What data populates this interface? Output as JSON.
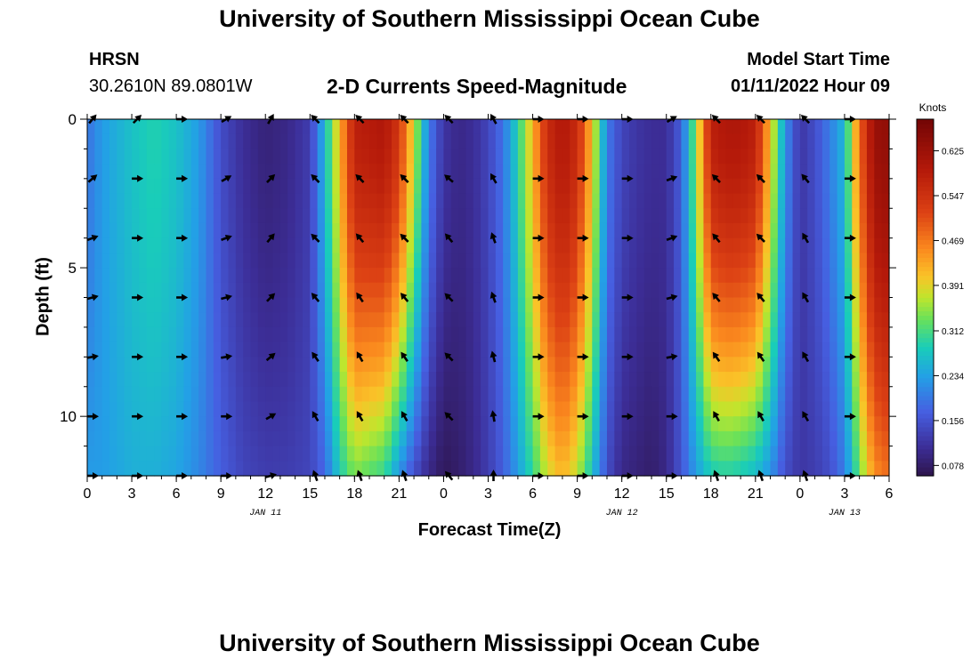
{
  "header": {
    "title": "University of Southern Mississippi Ocean Cube",
    "station": "HRSN",
    "coordinates": "30.2610N  89.0801W",
    "plot_title": "2-D Currents Speed-Magnitude",
    "model_start_label": "Model Start Time",
    "model_start_value": "01/11/2022 Hour 09"
  },
  "footer": {
    "title": "University of Southern Mississippi Ocean Cube"
  },
  "chart_data": {
    "type": "heatmap",
    "title": "2-D Currents Speed-Magnitude",
    "xlabel": "Forecast Time(Z)",
    "ylabel": "Depth (ft)",
    "colorbar_label": "Knots",
    "x_range_hours": [
      0,
      54
    ],
    "y_range_ft": [
      0,
      12
    ],
    "x_tick_labels": [
      "0",
      "3",
      "6",
      "9",
      "12",
      "15",
      "18",
      "21",
      "0",
      "3",
      "6",
      "9",
      "12",
      "15",
      "18",
      "21",
      "0",
      "3",
      "6"
    ],
    "y_tick_values": [
      0,
      5,
      10
    ],
    "date_labels": [
      {
        "label": "JAN 11",
        "hour": 12
      },
      {
        "label": "JAN 12",
        "hour": 36
      },
      {
        "label": "JAN 13",
        "hour": 51
      }
    ],
    "colorbar_ticks": [
      "0.078",
      "0.156",
      "0.234",
      "0.312",
      "0.391",
      "0.469",
      "0.547",
      "0.625"
    ],
    "colorbar_range": [
      0.06,
      0.68
    ],
    "speed_profile": {
      "hours": [
        0,
        1,
        3,
        4.5,
        6,
        7.5,
        9,
        10.5,
        12,
        13.5,
        15,
        16,
        17,
        18,
        20,
        21,
        22,
        23,
        24,
        25,
        26,
        27,
        28,
        29,
        30,
        31,
        32,
        33,
        34,
        35,
        36,
        37,
        38,
        39,
        40,
        41,
        42,
        43,
        44,
        45,
        46,
        47,
        48,
        49,
        50,
        51,
        52,
        53,
        54
      ],
      "surface_knots": [
        0.19,
        0.23,
        0.27,
        0.29,
        0.27,
        0.23,
        0.15,
        0.11,
        0.09,
        0.1,
        0.13,
        0.26,
        0.42,
        0.58,
        0.6,
        0.54,
        0.38,
        0.2,
        0.12,
        0.1,
        0.11,
        0.14,
        0.19,
        0.29,
        0.42,
        0.56,
        0.6,
        0.56,
        0.41,
        0.2,
        0.14,
        0.12,
        0.11,
        0.11,
        0.17,
        0.35,
        0.58,
        0.6,
        0.6,
        0.58,
        0.41,
        0.22,
        0.12,
        0.15,
        0.2,
        0.26,
        0.48,
        0.63,
        0.64
      ],
      "bottom_knots": [
        0.23,
        0.23,
        0.25,
        0.25,
        0.24,
        0.21,
        0.17,
        0.14,
        0.13,
        0.13,
        0.14,
        0.18,
        0.28,
        0.34,
        0.3,
        0.22,
        0.15,
        0.1,
        0.07,
        0.08,
        0.1,
        0.13,
        0.17,
        0.23,
        0.3,
        0.38,
        0.42,
        0.37,
        0.27,
        0.15,
        0.1,
        0.09,
        0.08,
        0.1,
        0.16,
        0.23,
        0.28,
        0.29,
        0.28,
        0.26,
        0.22,
        0.15,
        0.12,
        0.13,
        0.15,
        0.2,
        0.33,
        0.45,
        0.48
      ]
    },
    "vectors": {
      "hours": [
        0,
        3,
        6,
        9,
        12,
        15,
        18,
        21,
        24,
        27,
        30,
        33,
        36,
        39,
        42,
        45,
        48,
        51
      ],
      "depths_ft": [
        0,
        2,
        4,
        6,
        8,
        10,
        12
      ],
      "directions_deg": [
        [
          310,
          315,
          0,
          330,
          300,
          225,
          225,
          225,
          225,
          240,
          0,
          0,
          0,
          330,
          225,
          225,
          225,
          0
        ],
        [
          320,
          0,
          0,
          330,
          315,
          225,
          225,
          225,
          220,
          240,
          0,
          0,
          0,
          340,
          225,
          225,
          230,
          0
        ],
        [
          340,
          0,
          0,
          340,
          310,
          225,
          230,
          225,
          230,
          250,
          0,
          0,
          0,
          340,
          230,
          225,
          240,
          0
        ],
        [
          345,
          0,
          0,
          345,
          315,
          230,
          235,
          230,
          225,
          250,
          0,
          0,
          0,
          345,
          230,
          230,
          240,
          0
        ],
        [
          350,
          0,
          0,
          350,
          320,
          235,
          240,
          235,
          225,
          255,
          0,
          0,
          0,
          350,
          235,
          235,
          240,
          0
        ],
        [
          0,
          0,
          0,
          0,
          330,
          240,
          240,
          240,
          225,
          260,
          0,
          0,
          0,
          0,
          240,
          240,
          240,
          0
        ],
        [
          0,
          0,
          0,
          0,
          345,
          250,
          250,
          250,
          230,
          270,
          0,
          0,
          0,
          0,
          250,
          250,
          250,
          0
        ]
      ]
    }
  }
}
